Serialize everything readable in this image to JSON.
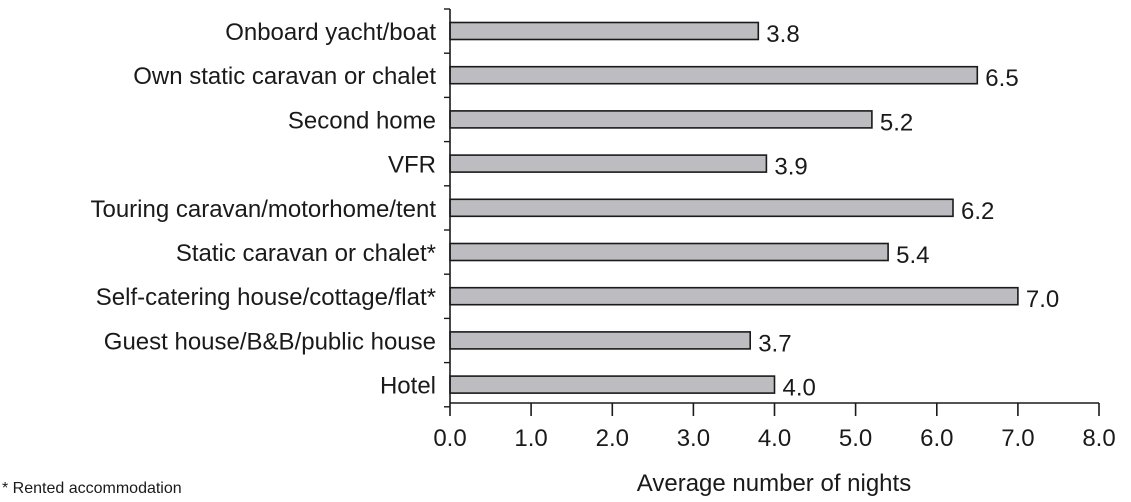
{
  "chart_data": {
    "type": "bar",
    "orientation": "horizontal",
    "categories": [
      "Onboard yacht/boat",
      "Own static caravan or chalet",
      "Second home",
      "VFR",
      "Touring caravan/motorhome/tent",
      "Static caravan or chalet*",
      "Self-catering house/cottage/flat*",
      "Guest house/B&B/public house",
      "Hotel"
    ],
    "values": [
      3.8,
      6.5,
      5.2,
      3.9,
      6.2,
      5.4,
      7.0,
      3.7,
      4.0
    ],
    "value_labels": [
      "3.8",
      "6.5",
      "5.2",
      "3.9",
      "6.2",
      "5.4",
      "7.0",
      "3.7",
      "4.0"
    ],
    "xlim": [
      0,
      8
    ],
    "x_ticks": [
      "0.0",
      "1.0",
      "2.0",
      "3.0",
      "4.0",
      "5.0",
      "6.0",
      "7.0",
      "8.0"
    ],
    "xlabel": "Average number of nights",
    "ylabel": "",
    "title": "",
    "grid": false,
    "bar_color": "#bdbdc1",
    "bar_edge_color": "#1a1a1a"
  },
  "footnote": "* Rented accommodation"
}
